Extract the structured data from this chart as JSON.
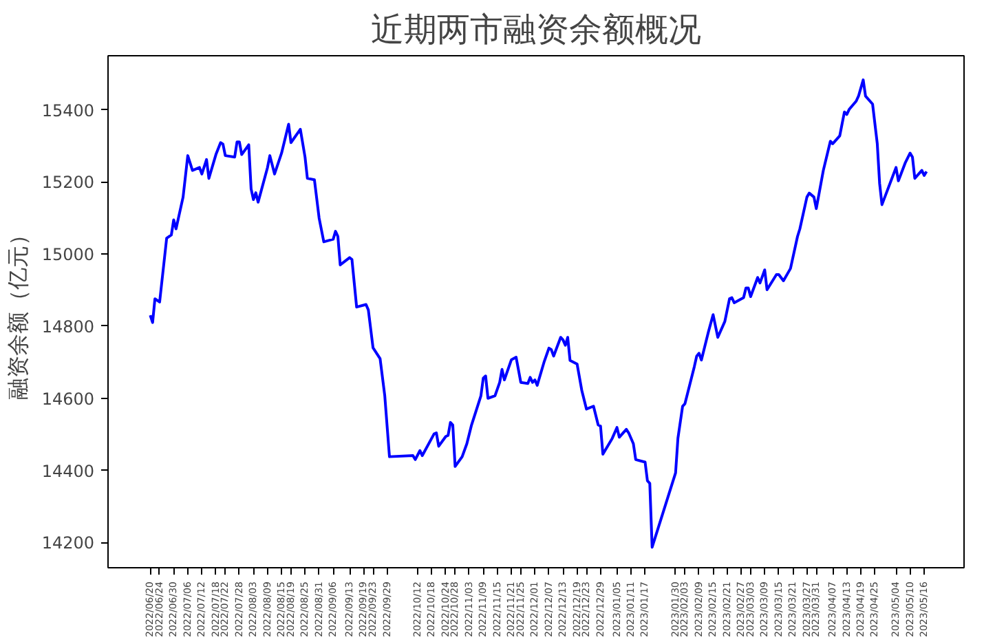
{
  "chart_data": {
    "type": "line",
    "title": "近期两市融资余额概况",
    "ylabel": "融资余额（亿元）",
    "x": [
      "2022-06-20",
      "2022-06-21",
      "2022-06-22",
      "2022-06-24",
      "2022-06-27",
      "2022-06-29",
      "2022-06-30",
      "2022-07-01",
      "2022-07-04",
      "2022-07-06",
      "2022-07-08",
      "2022-07-11",
      "2022-07-12",
      "2022-07-14",
      "2022-07-15",
      "2022-07-18",
      "2022-07-20",
      "2022-07-21",
      "2022-07-22",
      "2022-07-26",
      "2022-07-27",
      "2022-07-28",
      "2022-07-29",
      "2022-08-01",
      "2022-08-02",
      "2022-08-03",
      "2022-08-04",
      "2022-08-05",
      "2022-08-09",
      "2022-08-10",
      "2022-08-12",
      "2022-08-15",
      "2022-08-18",
      "2022-08-19",
      "2022-08-23",
      "2022-08-25",
      "2022-08-26",
      "2022-08-29",
      "2022-08-31",
      "2022-09-02",
      "2022-09-06",
      "2022-09-07",
      "2022-09-08",
      "2022-09-09",
      "2022-09-13",
      "2022-09-14",
      "2022-09-16",
      "2022-09-20",
      "2022-09-21",
      "2022-09-23",
      "2022-09-26",
      "2022-09-28",
      "2022-09-30",
      "2022-10-10",
      "2022-10-11",
      "2022-10-13",
      "2022-10-14",
      "2022-10-19",
      "2022-10-20",
      "2022-10-21",
      "2022-10-24",
      "2022-10-25",
      "2022-10-26",
      "2022-10-27",
      "2022-10-28",
      "2022-10-31",
      "2022-11-02",
      "2022-11-04",
      "2022-11-08",
      "2022-11-09",
      "2022-11-10",
      "2022-11-11",
      "2022-11-14",
      "2022-11-16",
      "2022-11-17",
      "2022-11-18",
      "2022-11-21",
      "2022-11-23",
      "2022-11-25",
      "2022-11-28",
      "2022-11-29",
      "2022-11-30",
      "2022-12-01",
      "2022-12-02",
      "2022-12-05",
      "2022-12-07",
      "2022-12-08",
      "2022-12-09",
      "2022-12-12",
      "2022-12-13",
      "2022-12-14",
      "2022-12-15",
      "2022-12-16",
      "2022-12-19",
      "2022-12-21",
      "2022-12-23",
      "2022-12-26",
      "2022-12-28",
      "2022-12-29",
      "2022-12-30",
      "2023-01-03",
      "2023-01-05",
      "2023-01-06",
      "2023-01-09",
      "2023-01-10",
      "2023-01-12",
      "2023-01-13",
      "2023-01-17",
      "2023-01-18",
      "2023-01-19",
      "2023-01-20",
      "2023-01-30",
      "2023-01-31",
      "2023-02-02",
      "2023-02-03",
      "2023-02-07",
      "2023-02-08",
      "2023-02-09",
      "2023-02-10",
      "2023-02-13",
      "2023-02-15",
      "2023-02-17",
      "2023-02-20",
      "2023-02-22",
      "2023-02-23",
      "2023-02-24",
      "2023-02-28",
      "2023-03-01",
      "2023-03-02",
      "2023-03-03",
      "2023-03-06",
      "2023-03-07",
      "2023-03-08",
      "2023-03-09",
      "2023-03-10",
      "2023-03-14",
      "2023-03-15",
      "2023-03-17",
      "2023-03-20",
      "2023-03-23",
      "2023-03-24",
      "2023-03-27",
      "2023-03-28",
      "2023-03-30",
      "2023-03-31",
      "2023-04-03",
      "2023-04-06",
      "2023-04-07",
      "2023-04-10",
      "2023-04-12",
      "2023-04-13",
      "2023-04-14",
      "2023-04-17",
      "2023-04-18",
      "2023-04-20",
      "2023-04-21",
      "2023-04-24",
      "2023-04-26",
      "2023-04-27",
      "2023-04-28",
      "2023-05-04",
      "2023-05-05",
      "2023-05-08",
      "2023-05-10",
      "2023-05-11",
      "2023-05-12",
      "2023-05-15",
      "2023-05-16",
      "2023-05-17"
    ],
    "series": [
      {
        "color": "#0000ff",
        "values": [
          14830,
          14810,
          14876,
          14867,
          15044,
          15053,
          15095,
          15070,
          15158,
          15273,
          15232,
          15240,
          15222,
          15262,
          15210,
          15276,
          15309,
          15305,
          15273,
          15269,
          15311,
          15311,
          15276,
          15303,
          15181,
          15151,
          15170,
          15144,
          15240,
          15273,
          15222,
          15280,
          15360,
          15309,
          15346,
          15269,
          15210,
          15206,
          15100,
          15034,
          15041,
          15063,
          15049,
          14970,
          14990,
          14985,
          14853,
          14860,
          14845,
          14740,
          14710,
          14607,
          14438,
          14441,
          14430,
          14455,
          14441,
          14501,
          14504,
          14467,
          14494,
          14497,
          14533,
          14526,
          14411,
          14438,
          14474,
          14526,
          14607,
          14656,
          14662,
          14600,
          14607,
          14644,
          14680,
          14651,
          14707,
          14714,
          14644,
          14641,
          14658,
          14644,
          14651,
          14636,
          14702,
          14739,
          14735,
          14717,
          14769,
          14762,
          14747,
          14769,
          14705,
          14695,
          14622,
          14570,
          14578,
          14526,
          14523,
          14445,
          14489,
          14519,
          14492,
          14514,
          14504,
          14474,
          14430,
          14423,
          14371,
          14364,
          14187,
          14393,
          14489,
          14578,
          14585,
          14688,
          14717,
          14725,
          14706,
          14784,
          14832,
          14769,
          14813,
          14876,
          14879,
          14865,
          14879,
          14906,
          14906,
          14882,
          14935,
          14920,
          14938,
          14956,
          14901,
          14943,
          14943,
          14926,
          14960,
          15049,
          15070,
          15158,
          15169,
          15158,
          15126,
          15232,
          15313,
          15306,
          15328,
          15394,
          15387,
          15401,
          15424,
          15438,
          15483,
          15438,
          15416,
          15306,
          15196,
          15137,
          15240,
          15203,
          15254,
          15280,
          15269,
          15210,
          15232,
          15218,
          15229
        ]
      }
    ],
    "xlim": [
      "2022-06-02",
      "2023-06-02"
    ],
    "ylim": [
      14130,
      15550
    ],
    "yticks": [
      14200,
      14400,
      14600,
      14800,
      15000,
      15200,
      15400
    ],
    "xticks": [
      {
        "value": "2022-06-20",
        "label": "2022/06/20"
      },
      {
        "value": "2022-06-24",
        "label": "2022/06/24"
      },
      {
        "value": "2022-06-30",
        "label": "2022/06/30"
      },
      {
        "value": "2022-07-06",
        "label": "2022/07/06"
      },
      {
        "value": "2022-07-12",
        "label": "2022/07/12"
      },
      {
        "value": "2022-07-18",
        "label": "2022/07/18"
      },
      {
        "value": "2022-07-22",
        "label": "2022/07/22"
      },
      {
        "value": "2022-07-28",
        "label": "2022/07/28"
      },
      {
        "value": "2022-08-03",
        "label": "2022/08/03"
      },
      {
        "value": "2022-08-09",
        "label": "2022/08/09"
      },
      {
        "value": "2022-08-15",
        "label": "2022/08/15"
      },
      {
        "value": "2022-08-19",
        "label": "2022/08/19"
      },
      {
        "value": "2022-08-25",
        "label": "2022/08/25"
      },
      {
        "value": "2022-08-31",
        "label": "2022/08/31"
      },
      {
        "value": "2022-09-06",
        "label": "2022/09/06"
      },
      {
        "value": "2022-09-13",
        "label": "2022/09/13"
      },
      {
        "value": "2022-09-19",
        "label": "2022/09/19"
      },
      {
        "value": "2022-09-23",
        "label": "2022/09/23"
      },
      {
        "value": "2022-09-29",
        "label": "2022/09/29"
      },
      {
        "value": "2022-10-12",
        "label": "2022/10/12"
      },
      {
        "value": "2022-10-18",
        "label": "2022/10/18"
      },
      {
        "value": "2022-10-24",
        "label": "2022/10/24"
      },
      {
        "value": "2022-10-28",
        "label": "2022/10/28"
      },
      {
        "value": "2022-11-03",
        "label": "2022/11/03"
      },
      {
        "value": "2022-11-09",
        "label": "2022/11/09"
      },
      {
        "value": "2022-11-15",
        "label": "2022/11/15"
      },
      {
        "value": "2022-11-21",
        "label": "2022/11/21"
      },
      {
        "value": "2022-11-25",
        "label": "2022/11/25"
      },
      {
        "value": "2022-12-01",
        "label": "2022/12/01"
      },
      {
        "value": "2022-12-07",
        "label": "2022/12/07"
      },
      {
        "value": "2022-12-13",
        "label": "2022/12/13"
      },
      {
        "value": "2022-12-19",
        "label": "2022/12/19"
      },
      {
        "value": "2022-12-23",
        "label": "2022/12/23"
      },
      {
        "value": "2022-12-29",
        "label": "2022/12/29"
      },
      {
        "value": "2023-01-05",
        "label": "2023/01/05"
      },
      {
        "value": "2023-01-11",
        "label": "2023/01/11"
      },
      {
        "value": "2023-01-17",
        "label": "2023/01/17"
      },
      {
        "value": "2023-01-30",
        "label": "2023/01/30"
      },
      {
        "value": "2023-02-03",
        "label": "2023/02/03"
      },
      {
        "value": "2023-02-09",
        "label": "2023/02/09"
      },
      {
        "value": "2023-02-15",
        "label": "2023/02/15"
      },
      {
        "value": "2023-02-21",
        "label": "2023/02/21"
      },
      {
        "value": "2023-02-27",
        "label": "2023/02/27"
      },
      {
        "value": "2023-03-03",
        "label": "2023/03/03"
      },
      {
        "value": "2023-03-09",
        "label": "2023/03/09"
      },
      {
        "value": "2023-03-15",
        "label": "2023/03/15"
      },
      {
        "value": "2023-03-21",
        "label": "2023/03/21"
      },
      {
        "value": "2023-03-27",
        "label": "2023/03/27"
      },
      {
        "value": "2023-03-31",
        "label": "2023/03/31"
      },
      {
        "value": "2023-04-07",
        "label": "2023/04/07"
      },
      {
        "value": "2023-04-13",
        "label": "2023/04/13"
      },
      {
        "value": "2023-04-19",
        "label": "2023/04/19"
      },
      {
        "value": "2023-04-25",
        "label": "2023/04/25"
      },
      {
        "value": "2023-05-04",
        "label": "2023/05/04"
      },
      {
        "value": "2023-05-10",
        "label": "2023/05/10"
      },
      {
        "value": "2023-05-16",
        "label": "2023/05/16"
      }
    ],
    "grid": false,
    "line_style": "solid"
  }
}
